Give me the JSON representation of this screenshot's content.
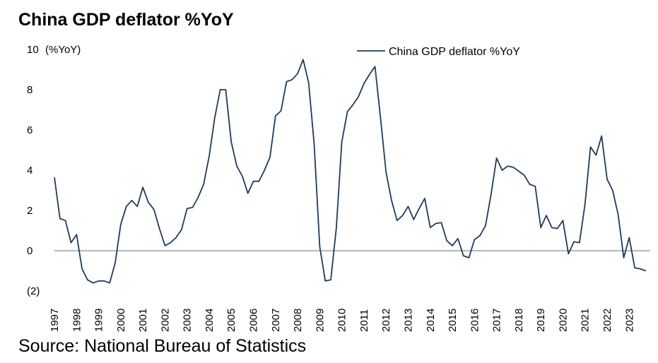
{
  "title": "China GDP deflator %YoY",
  "source": "Source: National Bureau of Statistics",
  "chart_data": {
    "type": "line",
    "ylabel": "(%YoY)",
    "ylim": [
      -2,
      10
    ],
    "yticks": [
      10,
      8,
      6,
      4,
      2,
      0,
      -2
    ],
    "ytick_labels": [
      "10",
      "8",
      "6",
      "4",
      "2",
      "0",
      "(2)"
    ],
    "xlim": [
      1997,
      2023.95
    ],
    "xtick_labels": [
      "1997",
      "1998",
      "1999",
      "2000",
      "2001",
      "2002",
      "2003",
      "2004",
      "2005",
      "2006",
      "2007",
      "2008",
      "2009",
      "2010",
      "2011",
      "2012",
      "2013",
      "2014",
      "2015",
      "2016",
      "2017",
      "2018",
      "2019",
      "2020",
      "2021",
      "2022",
      "2023"
    ],
    "grid": false,
    "legend": "top-right",
    "line_color": "#1f3b5c",
    "series": [
      {
        "name": "China GDP deflator %YoY",
        "x": [
          1997.0,
          1997.25,
          1997.5,
          1997.75,
          1998.0,
          1998.25,
          1998.5,
          1998.75,
          1999.0,
          1999.25,
          1999.5,
          1999.75,
          2000.0,
          2000.25,
          2000.5,
          2000.75,
          2001.0,
          2001.25,
          2001.5,
          2001.75,
          2002.0,
          2002.25,
          2002.5,
          2002.75,
          2003.0,
          2003.25,
          2003.5,
          2003.75,
          2004.0,
          2004.25,
          2004.5,
          2004.75,
          2005.0,
          2005.25,
          2005.5,
          2005.75,
          2006.0,
          2006.25,
          2006.5,
          2006.75,
          2007.0,
          2007.25,
          2007.5,
          2007.75,
          2008.0,
          2008.25,
          2008.5,
          2008.75,
          2009.0,
          2009.25,
          2009.5,
          2009.75,
          2010.0,
          2010.25,
          2010.5,
          2010.75,
          2011.0,
          2011.25,
          2011.5,
          2011.75,
          2012.0,
          2012.25,
          2012.5,
          2012.75,
          2013.0,
          2013.25,
          2013.5,
          2013.75,
          2014.0,
          2014.25,
          2014.5,
          2014.75,
          2015.0,
          2015.25,
          2015.5,
          2015.75,
          2016.0,
          2016.25,
          2016.5,
          2016.75,
          2017.0,
          2017.25,
          2017.5,
          2017.75,
          2018.0,
          2018.25,
          2018.5,
          2018.75,
          2019.0,
          2019.25,
          2019.5,
          2019.75,
          2020.0,
          2020.25,
          2020.5,
          2020.75,
          2021.0,
          2021.25,
          2021.5,
          2021.75,
          2022.0,
          2022.25,
          2022.5,
          2022.75,
          2023.0,
          2023.25,
          2023.5,
          2023.75
        ],
        "values": [
          3.65,
          1.6,
          1.5,
          0.4,
          0.8,
          -0.9,
          -1.45,
          -1.6,
          -1.5,
          -1.5,
          -1.6,
          -0.6,
          1.3,
          2.2,
          2.5,
          2.2,
          3.15,
          2.4,
          2.05,
          1.1,
          0.25,
          0.4,
          0.65,
          1.05,
          2.1,
          2.15,
          2.65,
          3.3,
          4.7,
          6.6,
          8.0,
          8.0,
          5.4,
          4.2,
          3.7,
          2.85,
          3.45,
          3.45,
          4.0,
          4.65,
          6.7,
          6.95,
          8.4,
          8.5,
          8.8,
          9.5,
          8.35,
          5.3,
          0.2,
          -1.5,
          -1.45,
          1.1,
          5.4,
          6.9,
          7.25,
          7.65,
          8.3,
          8.75,
          9.15,
          6.6,
          3.9,
          2.5,
          1.5,
          1.75,
          2.2,
          1.55,
          2.1,
          2.6,
          1.15,
          1.35,
          1.4,
          0.5,
          0.25,
          0.6,
          -0.25,
          -0.35,
          0.55,
          0.75,
          1.25,
          2.8,
          4.6,
          4.0,
          4.2,
          4.15,
          3.95,
          3.75,
          3.3,
          3.2,
          1.15,
          1.75,
          1.15,
          1.1,
          1.5,
          -0.15,
          0.45,
          0.4,
          2.3,
          5.15,
          4.75,
          5.7,
          3.55,
          3.0,
          1.8,
          -0.35,
          0.65,
          -0.85,
          -0.9,
          -1.0
        ]
      }
    ]
  }
}
